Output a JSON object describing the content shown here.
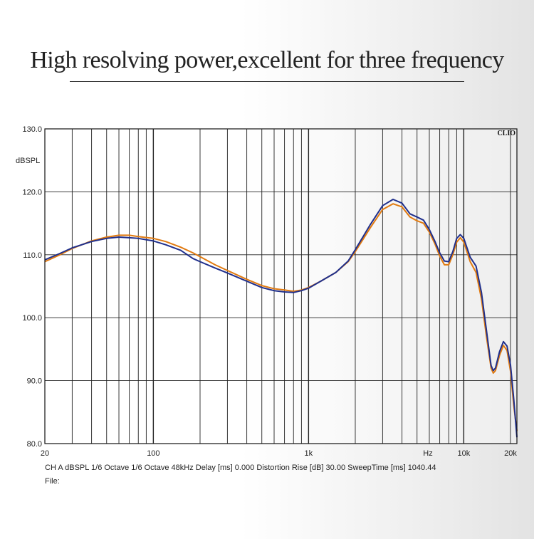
{
  "headline": "High resolving power,excellent for three frequency",
  "brand": "CLIO",
  "footer": {
    "info": "CH A   dBSPL   1/6 Octave   1/6 Octave   48kHz   Delay [ms] 0.000    Distortion Rise [dB] 30.00    SweepTime [ms] 1040.44",
    "file_label": "File:"
  },
  "colors": {
    "series_orange": "#e07a10",
    "series_blue": "#1f2f8c",
    "grid": "#222222"
  },
  "chart_data": {
    "type": "line",
    "xscale": "log",
    "xlim": [
      20,
      22000
    ],
    "ylim": [
      80,
      130
    ],
    "ylabel": "dBSPL",
    "xlabel": "Hz",
    "grid": true,
    "y_ticks": [
      "130.0",
      "120.0",
      "110.0",
      "100.0",
      "90.0",
      "80.0"
    ],
    "x_ticks": [
      {
        "value": 20,
        "label": "20"
      },
      {
        "value": 100,
        "label": "100"
      },
      {
        "value": 1000,
        "label": "1k"
      },
      {
        "value": 10000,
        "label": "10k"
      },
      {
        "value": 20000,
        "label": "20k"
      }
    ],
    "series": [
      {
        "color": "#e07a10",
        "points": [
          [
            20,
            108.9
          ],
          [
            25,
            110.0
          ],
          [
            30,
            111.0
          ],
          [
            40,
            112.2
          ],
          [
            50,
            112.8
          ],
          [
            60,
            113.1
          ],
          [
            70,
            113.1
          ],
          [
            80,
            112.9
          ],
          [
            100,
            112.6
          ],
          [
            120,
            112.1
          ],
          [
            150,
            111.2
          ],
          [
            180,
            110.3
          ],
          [
            200,
            109.7
          ],
          [
            250,
            108.4
          ],
          [
            300,
            107.5
          ],
          [
            400,
            106.1
          ],
          [
            500,
            105.1
          ],
          [
            600,
            104.6
          ],
          [
            700,
            104.4
          ],
          [
            800,
            104.2
          ],
          [
            900,
            104.4
          ],
          [
            1000,
            104.8
          ],
          [
            1200,
            105.8
          ],
          [
            1500,
            107.2
          ],
          [
            1800,
            108.9
          ],
          [
            2000,
            110.5
          ],
          [
            2500,
            114.3
          ],
          [
            3000,
            117.2
          ],
          [
            3500,
            118.1
          ],
          [
            4000,
            117.6
          ],
          [
            4500,
            116.0
          ],
          [
            5000,
            115.4
          ],
          [
            5500,
            115.0
          ],
          [
            6000,
            113.6
          ],
          [
            6500,
            111.8
          ],
          [
            7000,
            109.8
          ],
          [
            7500,
            108.4
          ],
          [
            8000,
            108.4
          ],
          [
            8500,
            110.0
          ],
          [
            9000,
            112.0
          ],
          [
            9500,
            112.7
          ],
          [
            10000,
            112.0
          ],
          [
            11000,
            108.9
          ],
          [
            12000,
            107.2
          ],
          [
            13000,
            103.0
          ],
          [
            14000,
            97.0
          ],
          [
            15000,
            92.0
          ],
          [
            15500,
            91.2
          ],
          [
            16000,
            91.6
          ],
          [
            17000,
            94.0
          ],
          [
            18000,
            95.6
          ],
          [
            19000,
            94.8
          ],
          [
            20000,
            91.5
          ],
          [
            21000,
            86.0
          ],
          [
            22000,
            82.0
          ]
        ]
      },
      {
        "color": "#1f2f8c",
        "points": [
          [
            20,
            109.2
          ],
          [
            25,
            110.2
          ],
          [
            30,
            111.1
          ],
          [
            40,
            112.1
          ],
          [
            50,
            112.6
          ],
          [
            60,
            112.8
          ],
          [
            70,
            112.7
          ],
          [
            80,
            112.6
          ],
          [
            100,
            112.2
          ],
          [
            120,
            111.6
          ],
          [
            150,
            110.7
          ],
          [
            180,
            109.4
          ],
          [
            200,
            108.9
          ],
          [
            250,
            107.9
          ],
          [
            300,
            107.1
          ],
          [
            400,
            105.8
          ],
          [
            500,
            104.8
          ],
          [
            600,
            104.3
          ],
          [
            700,
            104.1
          ],
          [
            800,
            104.0
          ],
          [
            900,
            104.3
          ],
          [
            1000,
            104.7
          ],
          [
            1200,
            105.8
          ],
          [
            1500,
            107.2
          ],
          [
            1800,
            109.0
          ],
          [
            2000,
            110.8
          ],
          [
            2500,
            114.8
          ],
          [
            3000,
            117.8
          ],
          [
            3500,
            118.8
          ],
          [
            4000,
            118.2
          ],
          [
            4500,
            116.5
          ],
          [
            5000,
            116.0
          ],
          [
            5500,
            115.5
          ],
          [
            6000,
            114.0
          ],
          [
            6500,
            112.2
          ],
          [
            7000,
            110.3
          ],
          [
            7500,
            109.0
          ],
          [
            8000,
            108.9
          ],
          [
            8500,
            110.5
          ],
          [
            9000,
            112.6
          ],
          [
            9500,
            113.2
          ],
          [
            10000,
            112.6
          ],
          [
            11000,
            109.6
          ],
          [
            12000,
            108.2
          ],
          [
            13000,
            104.0
          ],
          [
            14000,
            98.0
          ],
          [
            15000,
            92.4
          ],
          [
            15500,
            91.6
          ],
          [
            16000,
            92.0
          ],
          [
            17000,
            94.6
          ],
          [
            18000,
            96.2
          ],
          [
            19000,
            95.5
          ],
          [
            20000,
            92.5
          ],
          [
            21000,
            87.0
          ],
          [
            22000,
            81.0
          ]
        ]
      }
    ]
  }
}
